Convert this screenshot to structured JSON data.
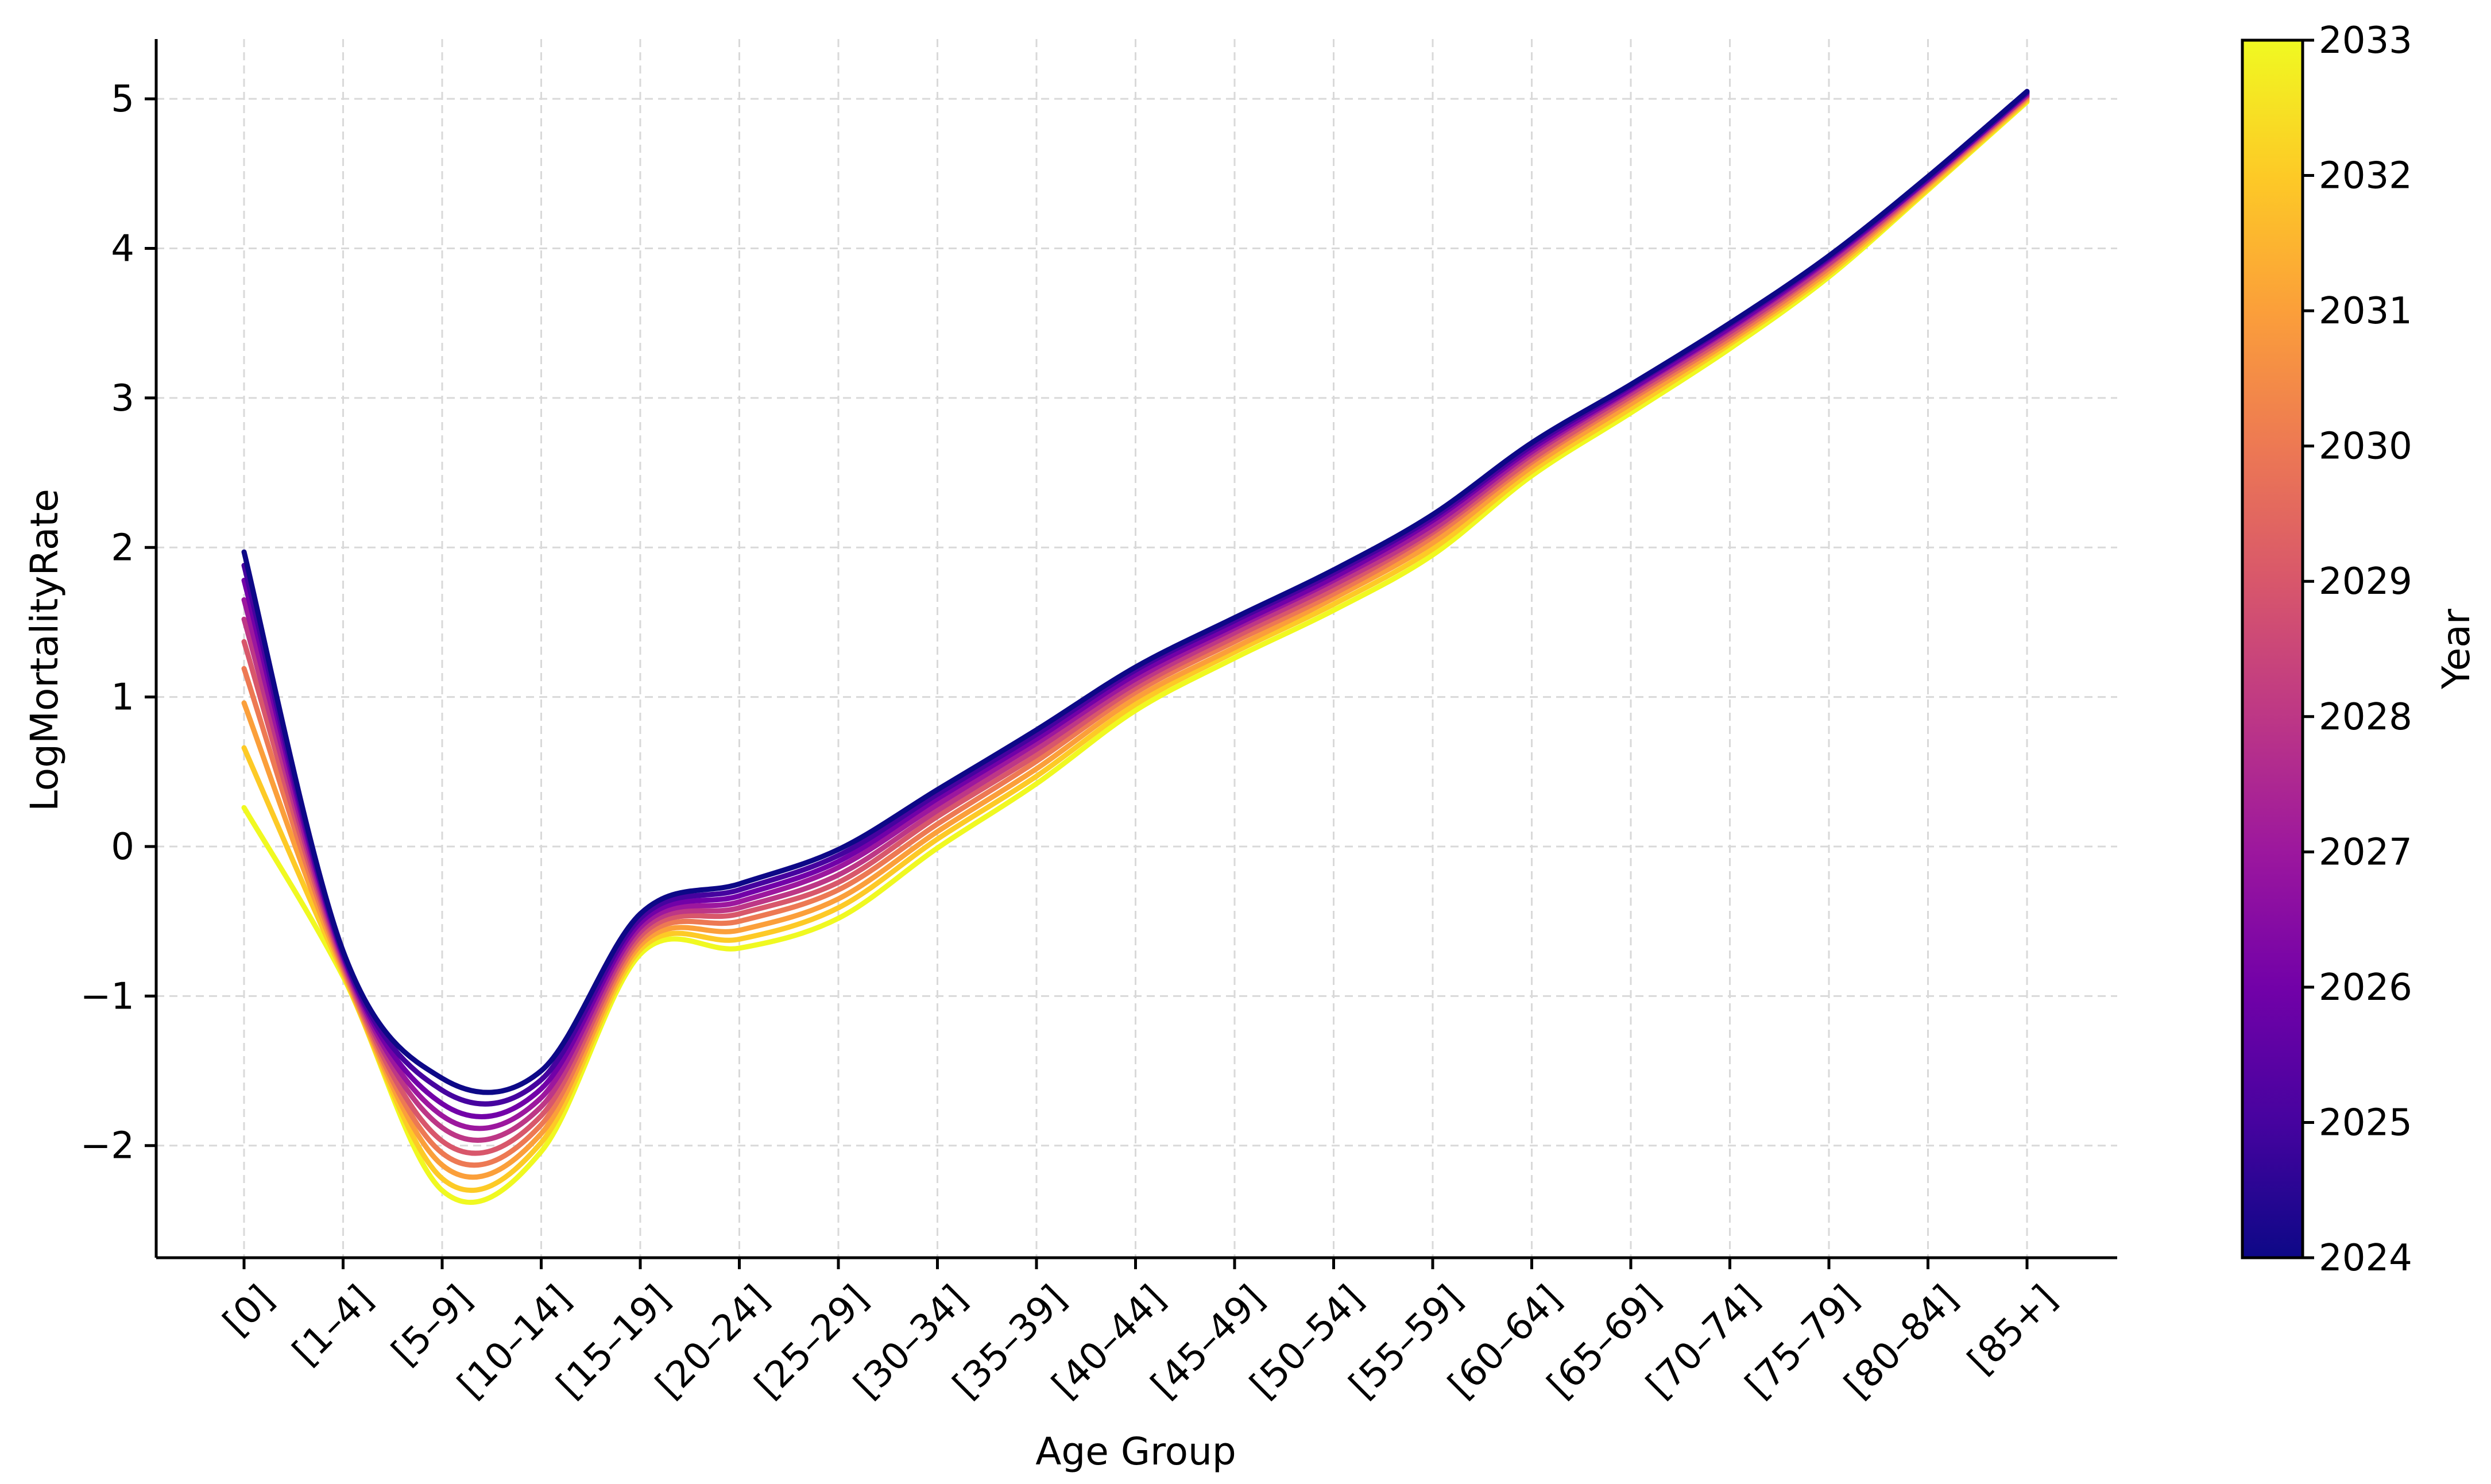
{
  "chart_data": {
    "type": "line",
    "title": "",
    "xlabel": "Age Group",
    "ylabel": "LogMortalityRate",
    "categories": [
      "[0]",
      "[1–4]",
      "[5–9]",
      "[10–14]",
      "[15–19]",
      "[20–24]",
      "[25–29]",
      "[30–34]",
      "[35–39]",
      "[40–44]",
      "[45–49]",
      "[50–54]",
      "[55–59]",
      "[60–64]",
      "[65–69]",
      "[70–74]",
      "[75–79]",
      "[80–84]",
      "[85+]"
    ],
    "ylim": [
      -2.75,
      5.4
    ],
    "yticks": [
      -2,
      -1,
      0,
      1,
      2,
      3,
      4,
      5
    ],
    "ytick_labels": [
      "−2",
      "−1",
      "0",
      "1",
      "2",
      "3",
      "4",
      "5"
    ],
    "grid": true,
    "colorbar": {
      "label": "Year",
      "min": 2024,
      "max": 2033,
      "ticks": [
        "2024",
        "2025",
        "2026",
        "2027",
        "2028",
        "2029",
        "2030",
        "2031",
        "2032",
        "2033"
      ],
      "colors": [
        "#0d0887",
        "#46039f",
        "#7201a8",
        "#9c179e",
        "#bd3786",
        "#d8576b",
        "#ed7953",
        "#fb9f3a",
        "#fdca26",
        "#f0f921"
      ]
    },
    "series": [
      {
        "color": "#0d0887",
        "values": [
          1.97,
          -0.7,
          -1.55,
          -1.5,
          -0.45,
          -0.25,
          -0.02,
          0.38,
          0.78,
          1.2,
          1.53,
          1.85,
          2.22,
          2.7,
          3.09,
          3.5,
          3.95,
          4.48,
          5.05
        ]
      },
      {
        "color": "#46039f",
        "values": [
          1.88,
          -0.72,
          -1.63,
          -1.56,
          -0.48,
          -0.29,
          -0.06,
          0.35,
          0.75,
          1.18,
          1.51,
          1.83,
          2.2,
          2.68,
          3.08,
          3.49,
          3.94,
          4.47,
          5.04
        ]
      },
      {
        "color": "#7201a8",
        "values": [
          1.78,
          -0.73,
          -1.72,
          -1.62,
          -0.51,
          -0.33,
          -0.1,
          0.32,
          0.72,
          1.15,
          1.48,
          1.8,
          2.18,
          2.66,
          3.06,
          3.47,
          3.93,
          4.46,
          5.04
        ]
      },
      {
        "color": "#9c179e",
        "values": [
          1.65,
          -0.75,
          -1.8,
          -1.68,
          -0.54,
          -0.37,
          -0.14,
          0.28,
          0.69,
          1.12,
          1.46,
          1.78,
          2.15,
          2.64,
          3.05,
          3.46,
          3.92,
          4.46,
          5.03
        ]
      },
      {
        "color": "#bd3786",
        "values": [
          1.52,
          -0.77,
          -1.88,
          -1.74,
          -0.57,
          -0.41,
          -0.19,
          0.24,
          0.65,
          1.09,
          1.43,
          1.75,
          2.12,
          2.62,
          3.03,
          3.44,
          3.9,
          4.45,
          5.02
        ]
      },
      {
        "color": "#d8576b",
        "values": [
          1.37,
          -0.79,
          -1.97,
          -1.8,
          -0.6,
          -0.45,
          -0.24,
          0.2,
          0.61,
          1.06,
          1.4,
          1.72,
          2.1,
          2.59,
          3.01,
          3.42,
          3.89,
          4.44,
          5.02
        ]
      },
      {
        "color": "#ed7953",
        "values": [
          1.19,
          -0.81,
          -2.05,
          -1.86,
          -0.63,
          -0.5,
          -0.29,
          0.15,
          0.57,
          1.03,
          1.37,
          1.69,
          2.07,
          2.57,
          2.99,
          3.4,
          3.87,
          4.43,
          5.01
        ]
      },
      {
        "color": "#fb9f3a",
        "values": [
          0.96,
          -0.83,
          -2.13,
          -1.92,
          -0.66,
          -0.56,
          -0.35,
          0.1,
          0.52,
          0.99,
          1.33,
          1.66,
          2.03,
          2.54,
          2.96,
          3.38,
          3.85,
          4.42,
          5.0
        ]
      },
      {
        "color": "#fdca26",
        "values": [
          0.66,
          -0.85,
          -2.22,
          -1.98,
          -0.69,
          -0.62,
          -0.41,
          0.05,
          0.47,
          0.95,
          1.3,
          1.62,
          1.99,
          2.51,
          2.93,
          3.36,
          3.83,
          4.4,
          4.99
        ]
      },
      {
        "color": "#f0f921",
        "values": [
          0.26,
          -0.87,
          -2.3,
          -2.04,
          -0.72,
          -0.68,
          -0.48,
          -0.01,
          0.42,
          0.91,
          1.26,
          1.58,
          1.95,
          2.48,
          2.9,
          3.33,
          3.81,
          4.39,
          4.98
        ]
      }
    ]
  }
}
